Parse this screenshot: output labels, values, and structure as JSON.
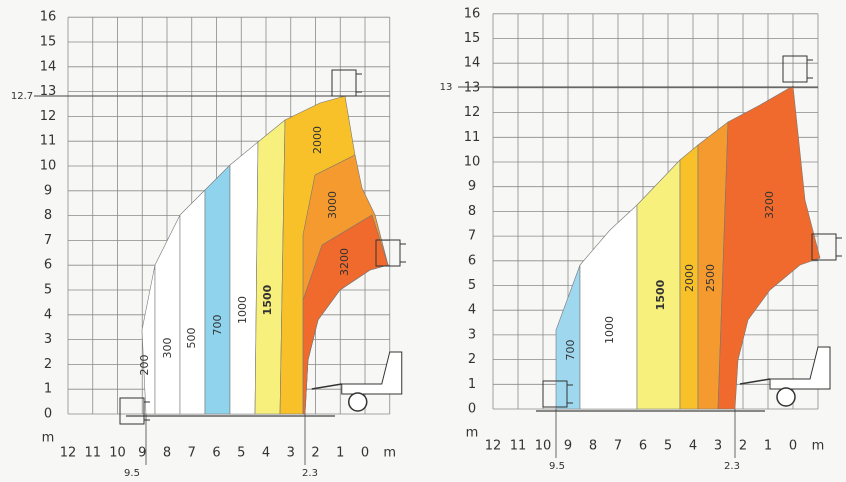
{
  "charts": [
    {
      "y_labels": [
        0,
        1,
        2,
        3,
        4,
        5,
        6,
        7,
        8,
        9,
        10,
        11,
        12,
        13,
        14,
        15,
        16
      ],
      "y_unit": "m",
      "x_labels": [
        12,
        11,
        10,
        9,
        8,
        7,
        6,
        5,
        4,
        3,
        2,
        1,
        0
      ],
      "x_unit": "m",
      "max_height": 12.7,
      "reach_marks": [
        9.5,
        2.3
      ],
      "zones": [
        {
          "label": "200",
          "color": "#ffffff"
        },
        {
          "label": "300",
          "color": "#ffffff"
        },
        {
          "label": "500",
          "color": "#ffffff"
        },
        {
          "label": "700",
          "color": "#8fd3ec"
        },
        {
          "label": "1000",
          "color": "#ffffff"
        },
        {
          "label": "1500",
          "color": "#f7f07c"
        },
        {
          "label": "2000",
          "color": "#f8c129"
        },
        {
          "label": "3000",
          "color": "#f59a2e"
        },
        {
          "label": "3200",
          "color": "#ef6a2c"
        }
      ]
    },
    {
      "y_labels": [
        0,
        1,
        2,
        3,
        4,
        5,
        6,
        7,
        8,
        9,
        10,
        11,
        12,
        13,
        14,
        15,
        16
      ],
      "y_unit": "m",
      "x_labels": [
        12,
        11,
        10,
        9,
        8,
        7,
        6,
        5,
        4,
        3,
        2,
        1,
        0
      ],
      "x_unit": "m",
      "max_height": 13,
      "reach_marks": [
        9.5,
        2.3
      ],
      "zones": [
        {
          "label": "700",
          "color": "#9fd8ee"
        },
        {
          "label": "1000",
          "color": "#ffffff"
        },
        {
          "label": "1500",
          "color": "#f7f07c"
        },
        {
          "label": "2000",
          "color": "#f8c129"
        },
        {
          "label": "2500",
          "color": "#f59a2e"
        },
        {
          "label": "3200",
          "color": "#ef6a2c"
        }
      ]
    }
  ]
}
